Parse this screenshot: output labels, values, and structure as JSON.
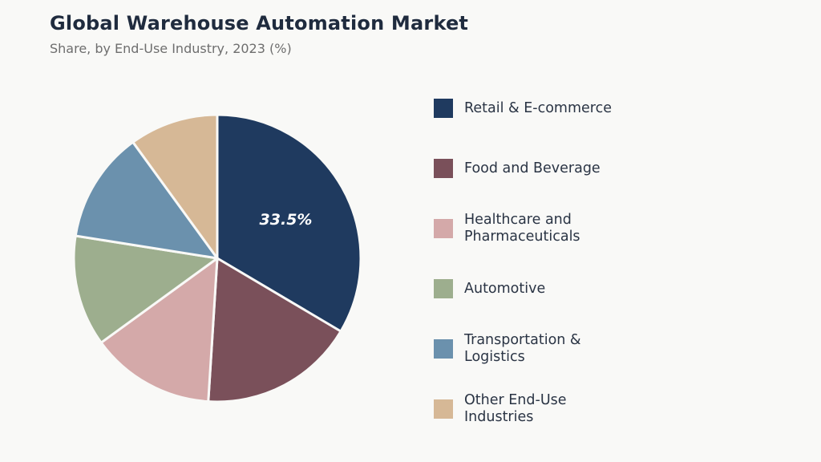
{
  "chart_data": {
    "type": "pie",
    "title": "Global Warehouse Automation Market",
    "subtitle": "Share, by End-Use Industry, 2023 (%)",
    "categories": [
      "Retail & E-commerce",
      "Food and Beverage",
      "Healthcare and Pharmaceuticals",
      "Automotive",
      "Transportation & Logistics",
      "Other End-Use Industries"
    ],
    "legend_labels": [
      "Retail & E-commerce",
      "Food and Beverage",
      "Healthcare and\nPharmaceuticals",
      "Automotive",
      "Transportation &\nLogistics",
      "Other End-Use\nIndustries"
    ],
    "values": [
      33.5,
      17.5,
      14.0,
      12.5,
      12.5,
      10.0
    ],
    "colors": [
      "#1f3a5f",
      "#7a505a",
      "#d4a9a9",
      "#9dae8e",
      "#6b91ad",
      "#d6b896"
    ],
    "data_labels": [
      "33.5%",
      "",
      "",
      "",
      "",
      ""
    ],
    "start_angle_deg": 90,
    "direction": "clockwise",
    "legend_position": "right"
  }
}
